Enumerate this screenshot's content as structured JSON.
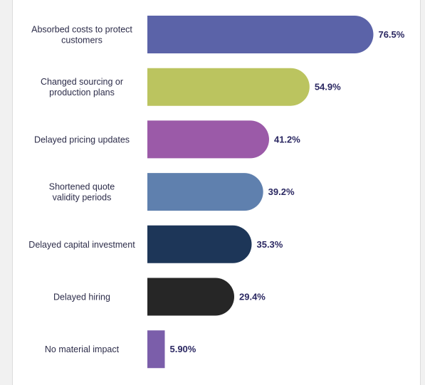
{
  "chart_data": {
    "type": "bar",
    "orientation": "horizontal",
    "categories": [
      "Absorbed costs to protect customers",
      "Changed sourcing or production plans",
      "Delayed pricing updates",
      "Shortened quote validity periods",
      "Delayed capital investment",
      "Delayed hiring",
      "No material impact"
    ],
    "category_lines": [
      [
        "Absorbed costs to protect",
        "customers"
      ],
      [
        "Changed sourcing or",
        "production plans"
      ],
      [
        "Delayed pricing updates"
      ],
      [
        "Shortened quote",
        "validity periods"
      ],
      [
        "Delayed capital investment"
      ],
      [
        "Delayed hiring"
      ],
      [
        "No material impact"
      ]
    ],
    "values": [
      76.5,
      54.9,
      41.2,
      39.2,
      35.3,
      29.4,
      5.9
    ],
    "value_labels": [
      "76.5%",
      "54.9%",
      "41.2%",
      "39.2%",
      "35.3%",
      "29.4%",
      "5.90%"
    ],
    "colors": [
      "#5b63a8",
      "#bbc45f",
      "#9b5aa8",
      "#5f80ae",
      "#1d3658",
      "#262626",
      "#7b5eaa"
    ],
    "xlim": [
      0,
      100
    ],
    "grid": false,
    "legend": "none",
    "title": "",
    "xlabel": "",
    "ylabel": ""
  }
}
